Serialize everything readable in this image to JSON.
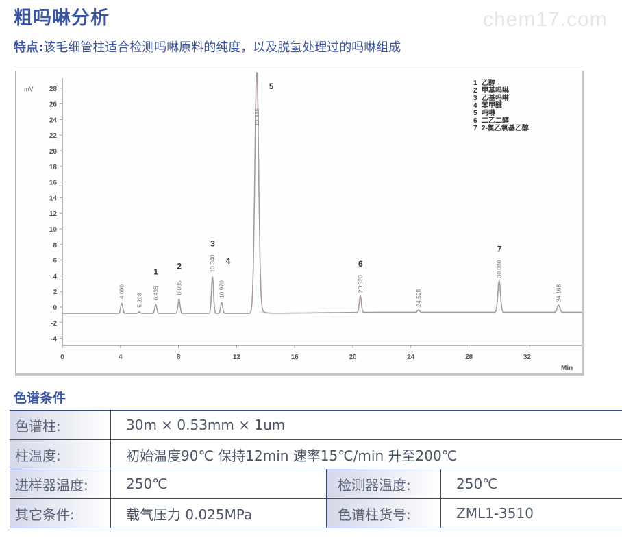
{
  "header": {
    "title": "粗吗啉分析",
    "watermark": "chem17.com",
    "feature_label": "特点:",
    "feature_text": "该毛细管柱适合检测吗啉原料的纯度，以及脱氢处理过的吗啉组成"
  },
  "chart_data": {
    "type": "line",
    "title": "",
    "xlabel": "Min",
    "ylabel": "mV",
    "xlim": [
      0,
      36
    ],
    "ylim": [
      -5,
      29
    ],
    "x_ticks": [
      0,
      4,
      8,
      12,
      16,
      20,
      24,
      28,
      32
    ],
    "y_ticks": [
      -4,
      -2,
      0,
      2,
      4,
      6,
      8,
      10,
      12,
      14,
      16,
      18,
      20,
      22,
      24,
      26,
      28
    ],
    "baseline_mV": -0.8,
    "grid": false,
    "peaks": [
      {
        "rt": 4.09,
        "label": "4.090",
        "height": 0.5,
        "number": ""
      },
      {
        "rt": 5.298,
        "label": "5.298",
        "height": -0.6,
        "number": ""
      },
      {
        "rt": 6.435,
        "label": "6.435",
        "height": 0.3,
        "number": "1"
      },
      {
        "rt": 8.035,
        "label": "8.035",
        "height": 1.0,
        "number": "2"
      },
      {
        "rt": 10.34,
        "label": "10.340",
        "height": 3.9,
        "number": "3"
      },
      {
        "rt": 10.97,
        "label": "10.970",
        "height": 0.6,
        "number": "4"
      },
      {
        "rt": 13.385,
        "label": "13.385",
        "height": 30.0,
        "number": "5"
      },
      {
        "rt": 20.52,
        "label": "20.520",
        "height": 1.3,
        "number": "6"
      },
      {
        "rt": 24.528,
        "label": "24.528",
        "height": -0.5,
        "number": ""
      },
      {
        "rt": 30.08,
        "label": "30.080",
        "height": 3.2,
        "number": "7"
      },
      {
        "rt": 34.168,
        "label": "34.168",
        "height": 0.1,
        "number": ""
      }
    ],
    "legend": [
      {
        "n": "1",
        "name": "乙醇"
      },
      {
        "n": "2",
        "name": "甲基吗啉"
      },
      {
        "n": "3",
        "name": "乙基吗啉"
      },
      {
        "n": "4",
        "name": "苯甲醚"
      },
      {
        "n": "5",
        "name": "吗啉"
      },
      {
        "n": "6",
        "name": "二乙二醇"
      },
      {
        "n": "7",
        "name": "2-氯乙氧基乙醇"
      }
    ]
  },
  "conditions": {
    "section_title": "色谱条件",
    "rows": [
      {
        "label": "色谱柱:",
        "value": "30m × 0.53mm × 1um"
      },
      {
        "label": "柱温度:",
        "value": "初始温度90℃ 保持12min 速率15℃/min 升至200℃"
      },
      {
        "label": "进样器温度:",
        "value": "250℃",
        "label2": "检测器温度:",
        "value2": "250℃"
      },
      {
        "label": "其它条件:",
        "value": "载气压力 0.025MPa",
        "label2": "色谱柱货号:",
        "value2": "ZML1-3510"
      }
    ]
  },
  "colors": {
    "brand": "#3a55a4",
    "table_border": "#3a4a8a",
    "trace": "#a89a98"
  }
}
